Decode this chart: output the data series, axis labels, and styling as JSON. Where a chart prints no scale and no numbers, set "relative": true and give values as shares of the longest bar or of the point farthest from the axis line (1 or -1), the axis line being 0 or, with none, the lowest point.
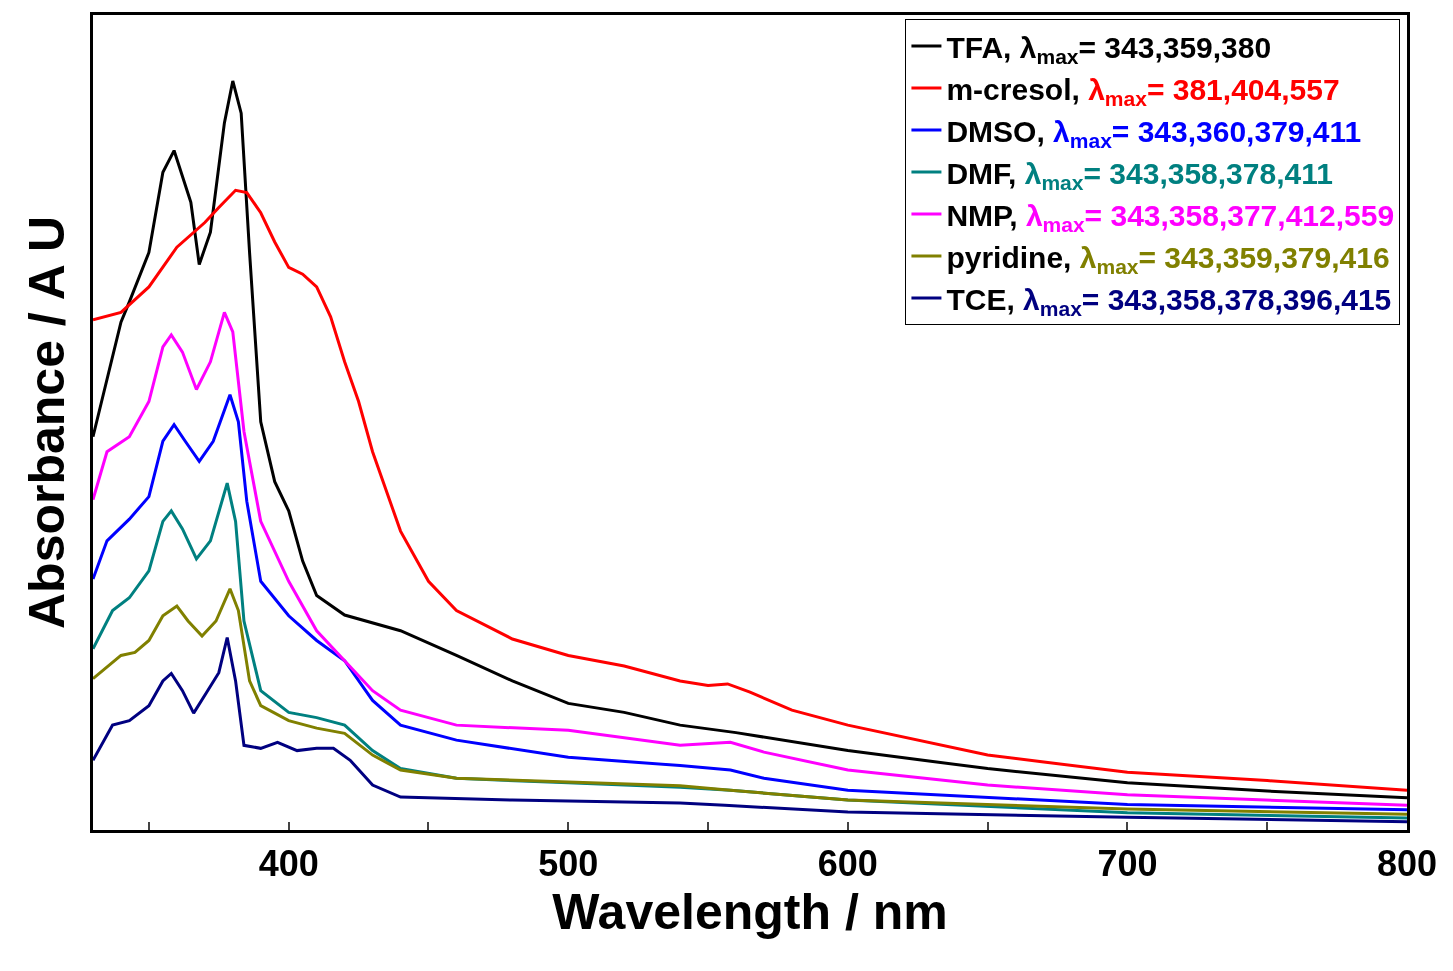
{
  "chart_data": {
    "type": "line",
    "relative": true,
    "xlabel": "Wavelength / nm",
    "ylabel": "Absorbance / A U",
    "xlim": [
      330,
      800
    ],
    "xticks": [
      {
        "value": 350,
        "label": null
      },
      400,
      {
        "value": 450,
        "label": null
      },
      500,
      {
        "value": 550,
        "label": null
      },
      600,
      {
        "value": 650,
        "label": null
      },
      700,
      {
        "value": 750,
        "label": null
      },
      800
    ],
    "legend": "top right",
    "marker": "none",
    "line_style": "solid",
    "series": [
      {
        "name": "TFA, λ$_{max}$= 343,359,380",
        "color": "#000000",
        "x": [
          330,
          340,
          343,
          350,
          355,
          359,
          365,
          368,
          372,
          377,
          380,
          383,
          386,
          390,
          395,
          400,
          405,
          410,
          420,
          440,
          460,
          480,
          500,
          520,
          540,
          560,
          600,
          650,
          700,
          750,
          800
        ],
        "values": [
          0.525,
          0.678,
          0.705,
          0.771,
          0.878,
          0.907,
          0.838,
          0.755,
          0.798,
          0.944,
          1.0,
          0.957,
          0.771,
          0.545,
          0.465,
          0.426,
          0.359,
          0.313,
          0.287,
          0.266,
          0.233,
          0.199,
          0.169,
          0.157,
          0.14,
          0.13,
          0.106,
          0.082,
          0.063,
          0.052,
          0.043
        ]
      },
      {
        "name": "m-cresol, λ$_{max}$= 381,404,557",
        "color": "#ff0000",
        "x": [
          330,
          340,
          350,
          360,
          370,
          375,
          381,
          385,
          390,
          395,
          400,
          405,
          410,
          415,
          420,
          425,
          430,
          440,
          450,
          460,
          480,
          500,
          520,
          540,
          550,
          557,
          565,
          580,
          600,
          650,
          700,
          750,
          800
        ],
        "values": [
          0.681,
          0.691,
          0.725,
          0.778,
          0.811,
          0.831,
          0.854,
          0.851,
          0.824,
          0.785,
          0.751,
          0.742,
          0.725,
          0.685,
          0.625,
          0.572,
          0.505,
          0.399,
          0.332,
          0.293,
          0.255,
          0.233,
          0.219,
          0.199,
          0.193,
          0.195,
          0.184,
          0.16,
          0.14,
          0.1,
          0.077,
          0.066,
          0.053
        ]
      },
      {
        "name": "DMSO, λ$_{max}$= 343,360,379,411",
        "color": "#0000ff",
        "x": [
          330,
          335,
          343,
          350,
          355,
          359,
          363,
          368,
          373,
          379,
          382,
          385,
          390,
          400,
          410,
          420,
          430,
          440,
          460,
          500,
          540,
          558,
          570,
          600,
          700,
          800
        ],
        "values": [
          0.335,
          0.386,
          0.415,
          0.445,
          0.519,
          0.541,
          0.519,
          0.492,
          0.519,
          0.581,
          0.545,
          0.439,
          0.332,
          0.286,
          0.253,
          0.226,
          0.173,
          0.14,
          0.12,
          0.097,
          0.086,
          0.08,
          0.069,
          0.053,
          0.034,
          0.027
        ]
      },
      {
        "name": "DMF, λ$_{max}$= 343,358,378,411",
        "color": "#008080",
        "x": [
          330,
          337,
          343,
          350,
          355,
          358,
          362,
          367,
          372,
          378,
          381,
          384,
          390,
          400,
          410,
          420,
          430,
          440,
          460,
          500,
          540,
          558,
          600,
          700,
          800
        ],
        "values": [
          0.242,
          0.293,
          0.31,
          0.346,
          0.412,
          0.426,
          0.402,
          0.362,
          0.386,
          0.463,
          0.412,
          0.279,
          0.186,
          0.157,
          0.15,
          0.14,
          0.106,
          0.082,
          0.069,
          0.063,
          0.057,
          0.053,
          0.04,
          0.023,
          0.016
        ]
      },
      {
        "name": "NMP, λ$_{max}$= 343,358,377,412,559",
        "color": "#ff00ff",
        "x": [
          330,
          335,
          343,
          350,
          355,
          358,
          362,
          367,
          372,
          377,
          380,
          384,
          390,
          400,
          410,
          420,
          430,
          440,
          460,
          500,
          540,
          558,
          570,
          600,
          650,
          700,
          800
        ],
        "values": [
          0.441,
          0.505,
          0.525,
          0.572,
          0.645,
          0.661,
          0.638,
          0.588,
          0.625,
          0.691,
          0.665,
          0.532,
          0.412,
          0.332,
          0.266,
          0.226,
          0.186,
          0.16,
          0.14,
          0.133,
          0.113,
          0.117,
          0.104,
          0.08,
          0.06,
          0.047,
          0.033
        ]
      },
      {
        "name": "pyridine, λ$_{max}$= 343,359,379,416",
        "color": "#808000",
        "x": [
          330,
          340,
          345,
          350,
          355,
          360,
          364,
          369,
          374,
          379,
          382,
          386,
          390,
          400,
          410,
          420,
          430,
          440,
          460,
          500,
          540,
          558,
          600,
          700,
          800
        ],
        "values": [
          0.202,
          0.233,
          0.237,
          0.253,
          0.286,
          0.299,
          0.279,
          0.259,
          0.279,
          0.322,
          0.293,
          0.199,
          0.166,
          0.146,
          0.136,
          0.129,
          0.1,
          0.08,
          0.069,
          0.064,
          0.059,
          0.053,
          0.04,
          0.028,
          0.021
        ]
      },
      {
        "name": "TCE, λ$_{max}$= 343,358,378,396,415",
        "color": "#000080",
        "x": [
          330,
          337,
          343,
          350,
          355,
          358,
          362,
          366,
          371,
          375,
          378,
          381,
          384,
          390,
          396,
          403,
          410,
          416,
          422,
          430,
          440,
          480,
          540,
          556,
          600,
          700,
          800
        ],
        "values": [
          0.093,
          0.14,
          0.146,
          0.166,
          0.199,
          0.209,
          0.186,
          0.156,
          0.186,
          0.21,
          0.257,
          0.199,
          0.113,
          0.109,
          0.117,
          0.106,
          0.109,
          0.109,
          0.093,
          0.06,
          0.044,
          0.04,
          0.036,
          0.033,
          0.024,
          0.017,
          0.011
        ]
      }
    ]
  }
}
